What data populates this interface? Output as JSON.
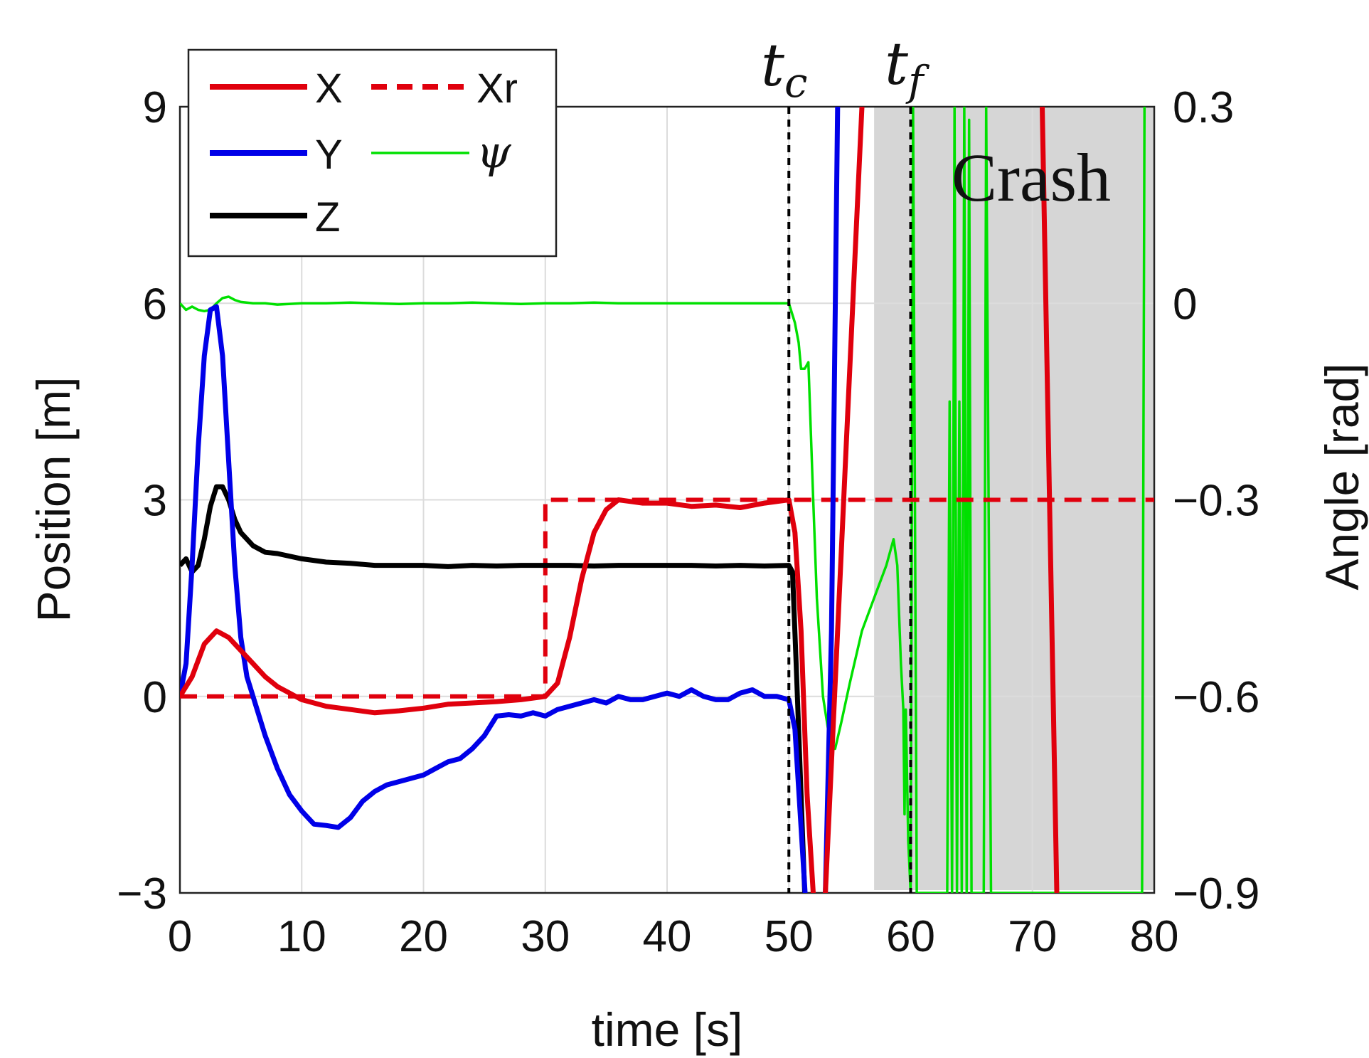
{
  "chart_data": {
    "type": "line",
    "xlabel": "time [s]",
    "ylabel_left": "Position [m]",
    "ylabel_right": "Angle [rad]",
    "xlim": [
      0,
      80
    ],
    "ylim_left": [
      -3,
      9
    ],
    "ylim_right": [
      -0.9,
      0.3
    ],
    "xticks": [
      "0",
      "10",
      "20",
      "30",
      "40",
      "50",
      "60",
      "70",
      "80"
    ],
    "yticks_left": [
      "−3",
      "0",
      "3",
      "6",
      "9"
    ],
    "yticks_right": [
      "−0.9",
      "−0.6",
      "−0.3",
      "0",
      "0.3"
    ],
    "grid": true,
    "legend_position": "top-left",
    "legend": {
      "x": "X",
      "xr": "Xr",
      "y": "Y",
      "psi": "ψ",
      "z": "Z"
    },
    "annotations": {
      "tc": {
        "base": "t",
        "sub": "c",
        "time": 50
      },
      "tf": {
        "base": "t",
        "sub": "f",
        "time": 60
      },
      "crash": {
        "label": "Crash",
        "start": 57,
        "end": 80
      }
    },
    "colors": {
      "X": "#e0000d",
      "Xr": "#e0000d",
      "Y": "#0000e8",
      "Z": "#000000",
      "psi": "#00e000",
      "crash_region": "#d6d6d6",
      "grid": "#dcdcdc"
    },
    "series": [
      {
        "name": "X",
        "axis": "left",
        "x": [
          0,
          1,
          2,
          3,
          4,
          5,
          6,
          7,
          8,
          9,
          10,
          12,
          14,
          16,
          18,
          20,
          22,
          24,
          26,
          28,
          30,
          31,
          32,
          33,
          34,
          35,
          36,
          38,
          40,
          42,
          44,
          46,
          48,
          50,
          50.5,
          51,
          51.5,
          52,
          52.5,
          53,
          54,
          55,
          56
        ],
        "values": [
          0,
          0.3,
          0.8,
          1.0,
          0.9,
          0.7,
          0.5,
          0.3,
          0.15,
          0.05,
          -0.05,
          -0.15,
          -0.2,
          -0.25,
          -0.22,
          -0.18,
          -0.12,
          -0.1,
          -0.08,
          -0.05,
          0,
          0.2,
          0.9,
          1.8,
          2.5,
          2.85,
          3.0,
          2.95,
          2.95,
          2.9,
          2.92,
          2.88,
          2.95,
          3.0,
          2.5,
          1.0,
          -1.5,
          -3.0,
          -4.0,
          -3.0,
          1.0,
          5.0,
          9.0
        ]
      },
      {
        "name": "X2",
        "axis": "left",
        "x": [
          70.8,
          72
        ],
        "values": [
          9,
          -3
        ]
      },
      {
        "name": "Xr",
        "axis": "left",
        "x": [
          0,
          30,
          30,
          80
        ],
        "values": [
          0,
          0,
          3,
          3
        ]
      },
      {
        "name": "Y",
        "axis": "left",
        "x": [
          0,
          0.5,
          1,
          1.5,
          2,
          2.5,
          3,
          3.5,
          4,
          4.5,
          5,
          5.5,
          6,
          7,
          8,
          9,
          10,
          11,
          12,
          13,
          14,
          15,
          16,
          17,
          18,
          19,
          20,
          21,
          22,
          23,
          24,
          25,
          26,
          27,
          28,
          29,
          30,
          31,
          32,
          33,
          34,
          35,
          36,
          37,
          38,
          39,
          40,
          41,
          42,
          43,
          44,
          45,
          46,
          47,
          48,
          49,
          50,
          50.5,
          51,
          51.5,
          52,
          52.5,
          53,
          53.5,
          54
        ],
        "values": [
          0,
          0.5,
          2.0,
          3.8,
          5.2,
          5.9,
          5.95,
          5.2,
          3.6,
          2.0,
          0.9,
          0.3,
          0.0,
          -0.6,
          -1.1,
          -1.5,
          -1.75,
          -1.95,
          -1.97,
          -2.0,
          -1.85,
          -1.6,
          -1.45,
          -1.35,
          -1.3,
          -1.25,
          -1.2,
          -1.1,
          -1.0,
          -0.95,
          -0.8,
          -0.6,
          -0.3,
          -0.28,
          -0.3,
          -0.25,
          -0.3,
          -0.2,
          -0.15,
          -0.1,
          -0.05,
          -0.1,
          0.0,
          -0.05,
          -0.05,
          0.0,
          0.05,
          0.0,
          0.1,
          0.0,
          -0.05,
          -0.05,
          0.05,
          0.1,
          0.0,
          0.0,
          -0.05,
          -0.5,
          -2.0,
          -3.5,
          -4.0,
          -4.0,
          -3.0,
          1.0,
          9.0
        ]
      },
      {
        "name": "Z",
        "axis": "left",
        "x": [
          0,
          0.5,
          1,
          1.5,
          2,
          2.5,
          3,
          3.5,
          4,
          4.5,
          5,
          6,
          7,
          8,
          10,
          12,
          14,
          16,
          18,
          20,
          22,
          24,
          26,
          28,
          30,
          32,
          34,
          36,
          38,
          40,
          42,
          44,
          46,
          48,
          50,
          50.3,
          50.6,
          51,
          51.3
        ],
        "values": [
          2.0,
          2.1,
          1.9,
          2.0,
          2.4,
          2.9,
          3.2,
          3.2,
          3.0,
          2.7,
          2.5,
          2.3,
          2.2,
          2.18,
          2.1,
          2.05,
          2.03,
          2.0,
          2.0,
          2.0,
          1.98,
          2.0,
          1.99,
          2.0,
          2.0,
          2.0,
          1.99,
          2.0,
          2.0,
          2.0,
          2.0,
          1.99,
          2.0,
          1.99,
          2.0,
          1.9,
          0.5,
          -1.5,
          -3.0
        ]
      },
      {
        "name": "psi",
        "axis": "right",
        "x": [
          0,
          0.5,
          1,
          1.5,
          2,
          2.5,
          3,
          3.5,
          4,
          4.5,
          5,
          6,
          7,
          8,
          10,
          12,
          14,
          16,
          18,
          20,
          22,
          24,
          26,
          28,
          30,
          32,
          34,
          36,
          38,
          40,
          42,
          44,
          46,
          48,
          49.5,
          50,
          50.5,
          50.8,
          51,
          51.3,
          51.6,
          52,
          52.3,
          52.8,
          53.3,
          53.8,
          54.3,
          55,
          56,
          57,
          58,
          58.6,
          58.9,
          59.2,
          59.4,
          59.5,
          59.6,
          59.8,
          60,
          60.2,
          60.5,
          63,
          63.2,
          63.4,
          63.6,
          63.8,
          64,
          64.2,
          64.4,
          64.6,
          64.8,
          65,
          66,
          66.2,
          66.6,
          79,
          79.2
        ],
        "values": [
          0.0,
          -0.01,
          -0.005,
          -0.01,
          -0.012,
          -0.01,
          0.0,
          0.008,
          0.01,
          0.005,
          0.002,
          0.0,
          0.0,
          -0.002,
          0.0,
          0.0,
          0.001,
          0.0,
          -0.001,
          0.0,
          0.0,
          0.001,
          0.0,
          -0.001,
          0.0,
          0.0,
          0.001,
          0.0,
          0.0,
          0.0,
          0.0,
          0.0,
          0.0,
          0.0,
          0.0,
          0.0,
          -0.03,
          -0.06,
          -0.1,
          -0.1,
          -0.09,
          -0.3,
          -0.45,
          -0.6,
          -0.66,
          -0.68,
          -0.64,
          -0.58,
          -0.5,
          -0.45,
          -0.4,
          -0.36,
          -0.4,
          -0.55,
          -0.62,
          -0.78,
          -0.62,
          -0.82,
          -0.9,
          0.3,
          -0.9,
          -0.9,
          -0.15,
          -0.9,
          0.3,
          -0.9,
          -0.15,
          -0.9,
          0.3,
          -0.9,
          0.28,
          -0.9,
          -0.9,
          0.3,
          -0.9,
          -0.9,
          0.3
        ]
      }
    ]
  }
}
